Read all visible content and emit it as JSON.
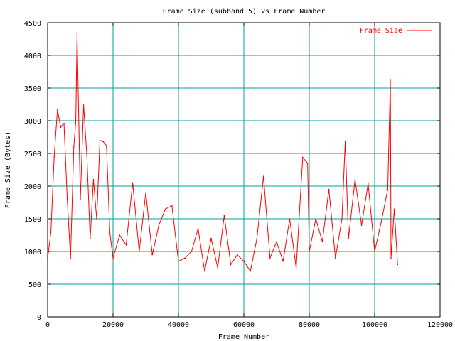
{
  "chart_data": {
    "type": "line",
    "title": "Frame Size (subband 5) vs Frame Number",
    "xlabel": "Frame Number",
    "ylabel": "Frame Size (Bytes)",
    "xlim": [
      0,
      120000
    ],
    "ylim": [
      0,
      4500
    ],
    "xticks": [
      0,
      20000,
      40000,
      60000,
      80000,
      100000,
      120000
    ],
    "yticks": [
      0,
      500,
      1000,
      1500,
      2000,
      2500,
      3000,
      3500,
      4000,
      4500
    ],
    "grid": true,
    "legend_position": "top-right",
    "series": [
      {
        "name": "Frame Size",
        "color": "#ff0000",
        "x": [
          0,
          1000,
          2000,
          3000,
          4000,
          5000,
          6000,
          7000,
          8000,
          8600,
          9000,
          10000,
          11000,
          12000,
          13000,
          14000,
          15000,
          16000,
          17000,
          18000,
          19000,
          20000,
          22000,
          24000,
          26000,
          28000,
          30000,
          32000,
          34000,
          36000,
          38000,
          40000,
          42000,
          44000,
          46000,
          48000,
          50000,
          52000,
          54000,
          56000,
          58000,
          60000,
          62000,
          64000,
          66000,
          68000,
          70000,
          72000,
          74000,
          76000,
          78000,
          79500,
          80000,
          82000,
          84000,
          86000,
          88000,
          90000,
          91000,
          92000,
          94000,
          96000,
          98000,
          100000,
          102000,
          104000,
          104800,
          105000,
          106000,
          107000
        ],
        "values": [
          900,
          1300,
          2450,
          3170,
          2900,
          2960,
          1800,
          900,
          2600,
          3000,
          4330,
          1800,
          3240,
          2460,
          1200,
          2100,
          1500,
          2700,
          2680,
          2620,
          1300,
          900,
          1250,
          1100,
          2050,
          1000,
          1900,
          950,
          1400,
          1650,
          1700,
          850,
          900,
          1000,
          1350,
          700,
          1200,
          750,
          1550,
          800,
          950,
          850,
          700,
          1200,
          2150,
          900,
          1150,
          850,
          1500,
          750,
          2440,
          2350,
          1000,
          1500,
          1150,
          1950,
          900,
          1500,
          2680,
          1200,
          2100,
          1400,
          2040,
          1000,
          1450,
          1950,
          3630,
          900,
          1650,
          800
        ]
      }
    ]
  }
}
